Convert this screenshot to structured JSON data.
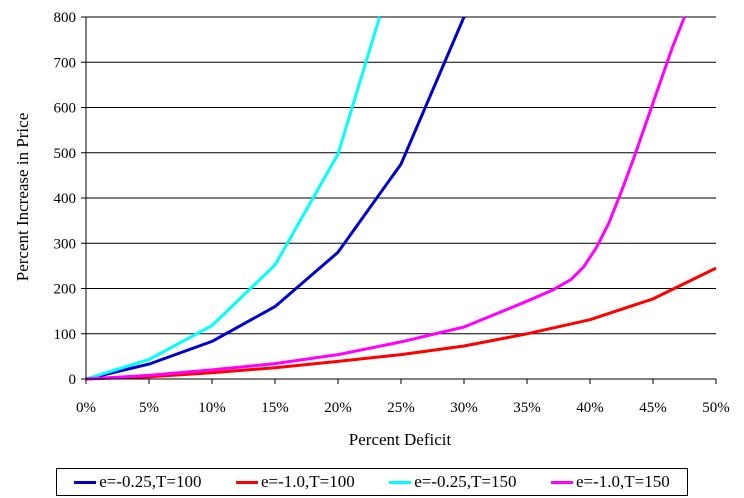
{
  "chart_data": {
    "type": "line",
    "title": "",
    "xlabel": "Percent Deficit",
    "ylabel": "Percent Increase in Price",
    "xlim": [
      0,
      50
    ],
    "ylim": [
      0,
      800
    ],
    "x_ticks": [
      "0%",
      "5%",
      "10%",
      "15%",
      "20%",
      "25%",
      "30%",
      "35%",
      "40%",
      "45%",
      "50%"
    ],
    "y_ticks": [
      "0",
      "100",
      "200",
      "300",
      "400",
      "500",
      "600",
      "700",
      "800"
    ],
    "grid": "horizontal",
    "legend_position": "bottom",
    "series": [
      {
        "name": "e=-0.25,T=100",
        "color": "#0000cc",
        "x": [
          0,
          5,
          10,
          15,
          20,
          25,
          30
        ],
        "y": [
          0,
          33,
          83,
          160,
          280,
          475,
          800
        ]
      },
      {
        "name": "e=-1.0,T=100",
        "color": "#ff0000",
        "x": [
          0,
          5,
          10,
          15,
          20,
          25,
          30,
          35,
          40,
          45,
          50
        ],
        "y": [
          0,
          5,
          14,
          25,
          39,
          54,
          73,
          100,
          131,
          177,
          245
        ]
      },
      {
        "name": "e=-0.25,T=150",
        "color": "#00ffff",
        "x": [
          0,
          5,
          10,
          15,
          20,
          23.3
        ],
        "y": [
          0,
          43,
          118,
          252,
          497,
          800
        ]
      },
      {
        "name": "e=-1.0,T=150",
        "color": "#ff00ff",
        "x": [
          0,
          5,
          10,
          15,
          20,
          25,
          30,
          35,
          37,
          38.5,
          39.5,
          40.5,
          41.5,
          42.5,
          43.5,
          44.5,
          45.5,
          46.5,
          47.5
        ],
        "y": [
          0,
          8,
          20,
          34,
          54,
          82,
          115,
          172,
          196,
          220,
          248,
          290,
          345,
          415,
          490,
          570,
          650,
          730,
          800
        ]
      }
    ]
  }
}
